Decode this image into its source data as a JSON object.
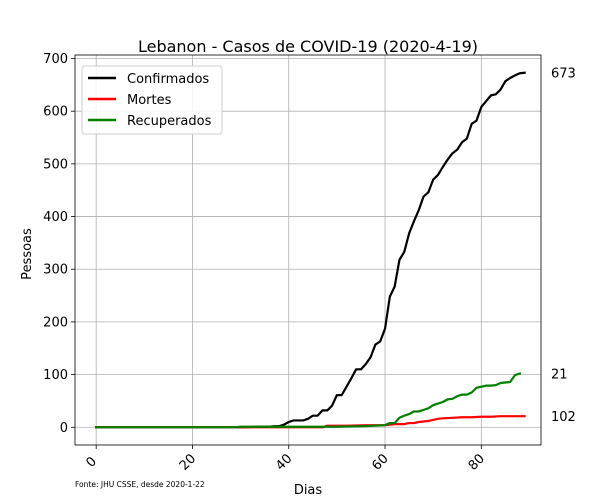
{
  "chart_data": {
    "type": "line",
    "title": "Lebanon - Casos de COVID-19 (2020-4-19)",
    "xlabel": "Dias",
    "ylabel": "Pessoas",
    "xlim": [
      -4.4,
      92.4
    ],
    "ylim": [
      -33.65,
      706.65
    ],
    "x_ticks": [
      0,
      20,
      40,
      60,
      80
    ],
    "y_ticks": [
      0,
      100,
      200,
      300,
      400,
      500,
      600,
      700
    ],
    "grid": true,
    "legend_position": "top-left",
    "source_note": "Fonte: JHU CSSE, desde 2020-1-22",
    "end_labels": [
      "673",
      "102",
      "21"
    ],
    "series": [
      {
        "name": "Confirmados",
        "color": "#000000",
        "points": [
          [
            0,
            0
          ],
          [
            30,
            0
          ],
          [
            34,
            1
          ],
          [
            36,
            1
          ],
          [
            37,
            2
          ],
          [
            38,
            2
          ],
          [
            39,
            5
          ],
          [
            40,
            10
          ],
          [
            41,
            13
          ],
          [
            42,
            13
          ],
          [
            43,
            13
          ],
          [
            44,
            16
          ],
          [
            45,
            22
          ],
          [
            46,
            22
          ],
          [
            47,
            32
          ],
          [
            48,
            32
          ],
          [
            49,
            41
          ],
          [
            50,
            61
          ],
          [
            51,
            61
          ],
          [
            52,
            77
          ],
          [
            53,
            93
          ],
          [
            54,
            110
          ],
          [
            55,
            110
          ],
          [
            56,
            120
          ],
          [
            57,
            133
          ],
          [
            58,
            157
          ],
          [
            59,
            163
          ],
          [
            60,
            187
          ],
          [
            61,
            248
          ],
          [
            62,
            267
          ],
          [
            63,
            318
          ],
          [
            64,
            333
          ],
          [
            65,
            368
          ],
          [
            66,
            391
          ],
          [
            67,
            412
          ],
          [
            68,
            438
          ],
          [
            69,
            446
          ],
          [
            70,
            470
          ],
          [
            71,
            479
          ],
          [
            72,
            494
          ],
          [
            73,
            508
          ],
          [
            74,
            520
          ],
          [
            75,
            527
          ],
          [
            76,
            541
          ],
          [
            77,
            548
          ],
          [
            78,
            576
          ],
          [
            79,
            582
          ],
          [
            80,
            608
          ],
          [
            81,
            619
          ],
          [
            82,
            630
          ],
          [
            83,
            632
          ],
          [
            84,
            641
          ],
          [
            85,
            657
          ],
          [
            86,
            663
          ],
          [
            87,
            668
          ],
          [
            88,
            672
          ],
          [
            89,
            673
          ]
        ]
      },
      {
        "name": "Mortes",
        "color": "#ff0000",
        "points": [
          [
            0,
            0
          ],
          [
            47,
            0
          ],
          [
            48,
            3
          ],
          [
            50,
            3
          ],
          [
            52,
            3
          ],
          [
            56,
            4
          ],
          [
            60,
            4
          ],
          [
            62,
            6
          ],
          [
            63,
            6
          ],
          [
            64,
            6
          ],
          [
            65,
            8
          ],
          [
            66,
            8
          ],
          [
            67,
            10
          ],
          [
            68,
            11
          ],
          [
            69,
            12
          ],
          [
            70,
            14
          ],
          [
            71,
            16
          ],
          [
            72,
            17
          ],
          [
            74,
            18
          ],
          [
            76,
            19
          ],
          [
            78,
            19
          ],
          [
            80,
            20
          ],
          [
            82,
            20
          ],
          [
            84,
            21
          ],
          [
            86,
            21
          ],
          [
            89,
            21
          ]
        ]
      },
      {
        "name": "Recuperados",
        "color": "#008000",
        "points": [
          [
            0,
            0
          ],
          [
            29,
            0
          ],
          [
            30,
            1
          ],
          [
            34,
            1
          ],
          [
            42,
            1
          ],
          [
            50,
            1
          ],
          [
            55,
            2
          ],
          [
            58,
            3
          ],
          [
            60,
            4
          ],
          [
            61,
            8
          ],
          [
            62,
            8
          ],
          [
            63,
            18
          ],
          [
            64,
            22
          ],
          [
            65,
            25
          ],
          [
            66,
            30
          ],
          [
            67,
            30
          ],
          [
            68,
            33
          ],
          [
            69,
            36
          ],
          [
            70,
            42
          ],
          [
            71,
            45
          ],
          [
            72,
            48
          ],
          [
            73,
            53
          ],
          [
            74,
            54
          ],
          [
            75,
            59
          ],
          [
            76,
            62
          ],
          [
            77,
            62
          ],
          [
            78,
            66
          ],
          [
            79,
            75
          ],
          [
            80,
            77
          ],
          [
            81,
            79
          ],
          [
            82,
            79
          ],
          [
            83,
            80
          ],
          [
            84,
            84
          ],
          [
            85,
            85
          ],
          [
            86,
            86
          ],
          [
            87,
            99
          ],
          [
            88,
            102
          ]
        ]
      }
    ]
  }
}
